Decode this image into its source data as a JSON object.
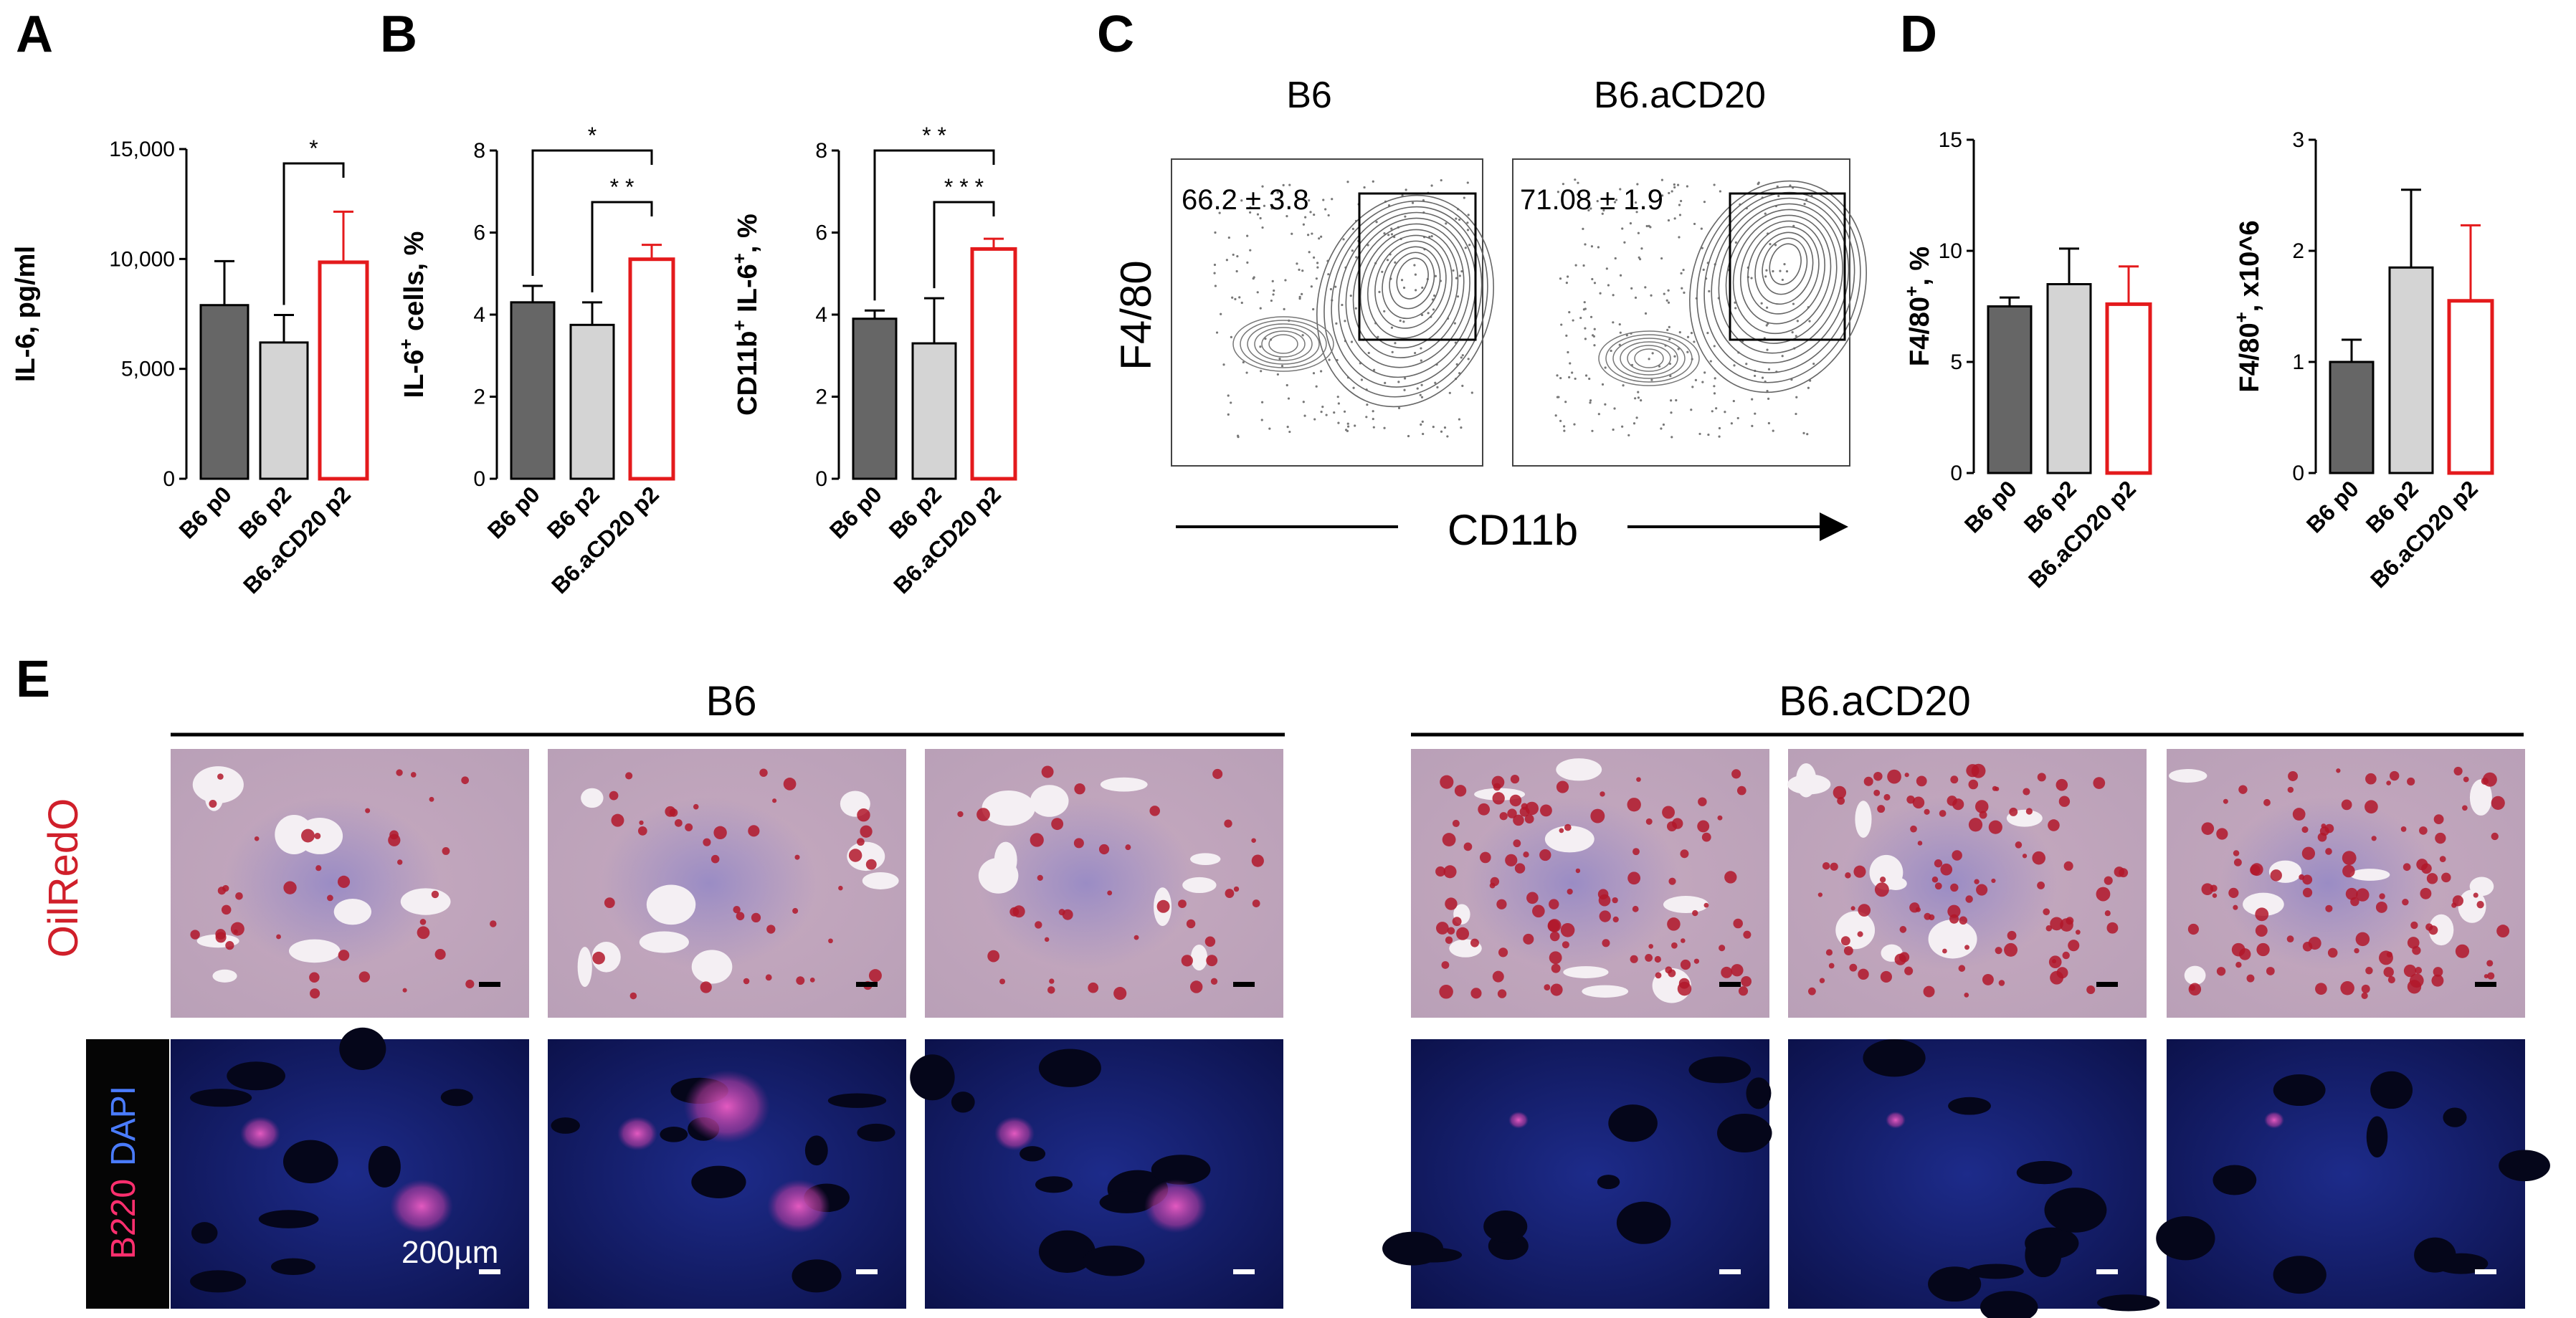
{
  "panel_letters": {
    "a": "A",
    "b": "B",
    "c": "C",
    "d": "D",
    "e": "E"
  },
  "groups": [
    "B6 p0",
    "B6 p2",
    "B6.aCD20 p2"
  ],
  "colors": {
    "dark_bar": "#666666",
    "light_bar": "#d4d4d4",
    "red_outline": "#e41a1c",
    "axis": "#000000"
  },
  "chart_data": [
    {
      "id": "A",
      "type": "bar",
      "categories": [
        "B6 p0",
        "B6 p2",
        "B6.aCD20 p2"
      ],
      "values": [
        7900,
        6200,
        9850
      ],
      "errors": [
        2000,
        1250,
        2300
      ],
      "ylabel": "IL-6, pg/ml",
      "ylim": [
        0,
        15000
      ],
      "yticks": [
        0,
        5000,
        10000,
        15000
      ],
      "ytick_labels": [
        "0",
        "5,000",
        "10,000",
        "15,000"
      ],
      "significance": [
        {
          "from": 1,
          "to": 2,
          "label": "*"
        }
      ]
    },
    {
      "id": "B1",
      "type": "bar",
      "categories": [
        "B6 p0",
        "B6 p2",
        "B6.aCD20 p2"
      ],
      "values": [
        4.3,
        3.75,
        5.35
      ],
      "errors": [
        0.4,
        0.55,
        0.35
      ],
      "ylabel": "IL-6+ cells, %",
      "ylim": [
        0,
        8
      ],
      "yticks": [
        0,
        2,
        4,
        6,
        8
      ],
      "ytick_labels": [
        "0",
        "2",
        "4",
        "6",
        "8"
      ],
      "significance": [
        {
          "from": 0,
          "to": 2,
          "label": "*"
        },
        {
          "from": 1,
          "to": 2,
          "label": "* *"
        }
      ]
    },
    {
      "id": "B2",
      "type": "bar",
      "categories": [
        "B6 p0",
        "B6 p2",
        "B6.aCD20 p2"
      ],
      "values": [
        3.9,
        3.3,
        5.6
      ],
      "errors": [
        0.2,
        1.1,
        0.25
      ],
      "ylabel": "CD11b+ IL-6+, %",
      "ylim": [
        0,
        8
      ],
      "yticks": [
        0,
        2,
        4,
        6,
        8
      ],
      "ytick_labels": [
        "0",
        "2",
        "4",
        "6",
        "8"
      ],
      "significance": [
        {
          "from": 0,
          "to": 2,
          "label": "* *"
        },
        {
          "from": 1,
          "to": 2,
          "label": "* * *"
        }
      ]
    },
    {
      "id": "D1",
      "type": "bar",
      "categories": [
        "B6 p0",
        "B6 p2",
        "B6.aCD20 p2"
      ],
      "values": [
        7.5,
        8.5,
        7.6
      ],
      "errors": [
        0.4,
        1.6,
        1.7
      ],
      "ylabel": "F4/80+, %",
      "ylim": [
        0,
        15
      ],
      "yticks": [
        0,
        5,
        10,
        15
      ],
      "ytick_labels": [
        "0",
        "5",
        "10",
        "15"
      ],
      "significance": []
    },
    {
      "id": "D2",
      "type": "bar",
      "categories": [
        "B6 p0",
        "B6 p2",
        "B6.aCD20 p2"
      ],
      "values": [
        1.0,
        1.85,
        1.55
      ],
      "errors": [
        0.2,
        0.7,
        0.68
      ],
      "ylabel": "F4/80+, x10^6",
      "ylim": [
        0,
        3
      ],
      "yticks": [
        0,
        1,
        2,
        3
      ],
      "ytick_labels": [
        "0",
        "1",
        "2",
        "3"
      ],
      "significance": []
    }
  ],
  "panel_c": {
    "plot1_title": "B6",
    "plot2_title": "B6.aCD20",
    "plot1_gate": "66.2 ± 3.8",
    "plot2_gate": "71.08 ± 1.9",
    "ylabel": "F4/80",
    "xlabel": "CD11b"
  },
  "panel_e": {
    "group1": "B6",
    "group2": "B6.aCD20",
    "row1_label": "OilRedO",
    "row2_label_a": "B220",
    "row2_label_b": "DAPI",
    "scale_label": "200µm"
  }
}
